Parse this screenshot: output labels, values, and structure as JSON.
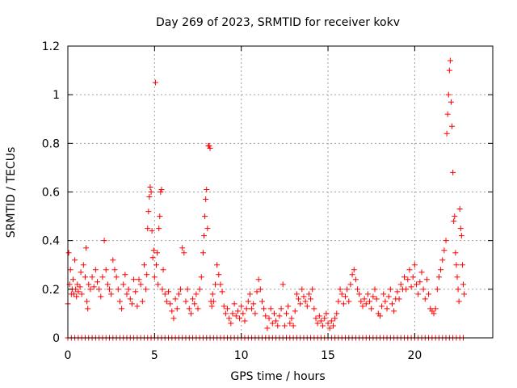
{
  "chart_data": {
    "type": "scatter",
    "title": "Day 269 of 2023, SRMTID for receiver kokv",
    "xlabel": "GPS time / hours",
    "ylabel": "SRMTID / TECUs",
    "xlim": [
      0,
      24.5
    ],
    "ylim": [
      0,
      1.2
    ],
    "x_ticks": [
      0,
      5,
      10,
      15,
      20
    ],
    "x_tick_labels": [
      "0",
      "5",
      "10",
      "15",
      "20"
    ],
    "y_ticks": [
      0,
      0.2,
      0.4,
      0.6,
      0.8,
      1.0,
      1.2
    ],
    "y_tick_labels": [
      "0",
      "0.2",
      "0.4",
      "0.6",
      "0.8",
      "1",
      "1.2"
    ],
    "grid": true,
    "legend": "none",
    "marker": "plus",
    "color": "#ff0000",
    "series": [
      {
        "name": "SRMTID",
        "points": [
          [
            0.0,
            0.14
          ],
          [
            0.05,
            0.35
          ],
          [
            0.1,
            0.22
          ],
          [
            0.15,
            0.28
          ],
          [
            0.2,
            0.18
          ],
          [
            0.25,
            0.2
          ],
          [
            0.3,
            0.24
          ],
          [
            0.35,
            0.18
          ],
          [
            0.4,
            0.32
          ],
          [
            0.45,
            0.2
          ],
          [
            0.5,
            0.17
          ],
          [
            0.55,
            0.22
          ],
          [
            0.6,
            0.19
          ],
          [
            0.7,
            0.21
          ],
          [
            0.75,
            0.27
          ],
          [
            0.8,
            0.18
          ],
          [
            0.9,
            0.3
          ],
          [
            1.0,
            0.25
          ],
          [
            1.05,
            0.37
          ],
          [
            1.1,
            0.15
          ],
          [
            1.15,
            0.12
          ],
          [
            1.2,
            0.22
          ],
          [
            1.3,
            0.2
          ],
          [
            1.4,
            0.25
          ],
          [
            1.5,
            0.21
          ],
          [
            1.6,
            0.28
          ],
          [
            1.7,
            0.23
          ],
          [
            1.8,
            0.2
          ],
          [
            1.9,
            0.17
          ],
          [
            2.0,
            0.25
          ],
          [
            2.1,
            0.4
          ],
          [
            2.2,
            0.28
          ],
          [
            2.3,
            0.22
          ],
          [
            2.4,
            0.2
          ],
          [
            2.5,
            0.18
          ],
          [
            2.6,
            0.32
          ],
          [
            2.7,
            0.28
          ],
          [
            2.8,
            0.25
          ],
          [
            2.9,
            0.2
          ],
          [
            3.0,
            0.15
          ],
          [
            3.1,
            0.12
          ],
          [
            3.2,
            0.22
          ],
          [
            3.3,
            0.26
          ],
          [
            3.4,
            0.18
          ],
          [
            3.5,
            0.2
          ],
          [
            3.6,
            0.16
          ],
          [
            3.7,
            0.14
          ],
          [
            3.8,
            0.24
          ],
          [
            3.9,
            0.19
          ],
          [
            4.0,
            0.13
          ],
          [
            4.1,
            0.24
          ],
          [
            4.2,
            0.22
          ],
          [
            4.3,
            0.15
          ],
          [
            4.4,
            0.3
          ],
          [
            4.5,
            0.2
          ],
          [
            4.55,
            0.26
          ],
          [
            4.6,
            0.45
          ],
          [
            4.65,
            0.52
          ],
          [
            4.7,
            0.58
          ],
          [
            4.75,
            0.62
          ],
          [
            4.8,
            0.6
          ],
          [
            4.85,
            0.44
          ],
          [
            4.9,
            0.33
          ],
          [
            4.95,
            0.36
          ],
          [
            5.0,
            0.25
          ],
          [
            5.05,
            1.05
          ],
          [
            5.1,
            0.3
          ],
          [
            5.15,
            0.35
          ],
          [
            5.2,
            0.22
          ],
          [
            5.25,
            0.45
          ],
          [
            5.3,
            0.5
          ],
          [
            5.35,
            0.6
          ],
          [
            5.4,
            0.61
          ],
          [
            5.45,
            0.2
          ],
          [
            5.5,
            0.28
          ],
          [
            5.6,
            0.18
          ],
          [
            5.7,
            0.15
          ],
          [
            5.8,
            0.19
          ],
          [
            5.9,
            0.14
          ],
          [
            6.0,
            0.11
          ],
          [
            6.1,
            0.08
          ],
          [
            6.2,
            0.16
          ],
          [
            6.3,
            0.12
          ],
          [
            6.4,
            0.18
          ],
          [
            6.5,
            0.2
          ],
          [
            6.6,
            0.37
          ],
          [
            6.7,
            0.35
          ],
          [
            6.8,
            0.15
          ],
          [
            6.9,
            0.2
          ],
          [
            7.0,
            0.12
          ],
          [
            7.1,
            0.1
          ],
          [
            7.2,
            0.16
          ],
          [
            7.3,
            0.14
          ],
          [
            7.4,
            0.18
          ],
          [
            7.5,
            0.12
          ],
          [
            7.6,
            0.2
          ],
          [
            7.7,
            0.25
          ],
          [
            7.8,
            0.35
          ],
          [
            7.85,
            0.42
          ],
          [
            7.9,
            0.5
          ],
          [
            7.95,
            0.57
          ],
          [
            8.0,
            0.61
          ],
          [
            8.05,
            0.45
          ],
          [
            8.1,
            0.79
          ],
          [
            8.15,
            0.79
          ],
          [
            8.2,
            0.78
          ],
          [
            8.25,
            0.15
          ],
          [
            8.3,
            0.13
          ],
          [
            8.35,
            0.18
          ],
          [
            8.4,
            0.15
          ],
          [
            8.5,
            0.22
          ],
          [
            8.6,
            0.3
          ],
          [
            8.7,
            0.26
          ],
          [
            8.8,
            0.22
          ],
          [
            8.9,
            0.19
          ],
          [
            9.0,
            0.13
          ],
          [
            9.1,
            0.1
          ],
          [
            9.2,
            0.12
          ],
          [
            9.3,
            0.08
          ],
          [
            9.4,
            0.06
          ],
          [
            9.5,
            0.1
          ],
          [
            9.6,
            0.14
          ],
          [
            9.7,
            0.09
          ],
          [
            9.8,
            0.11
          ],
          [
            9.9,
            0.08
          ],
          [
            10.0,
            0.13
          ],
          [
            10.1,
            0.1
          ],
          [
            10.2,
            0.07
          ],
          [
            10.3,
            0.12
          ],
          [
            10.4,
            0.15
          ],
          [
            10.5,
            0.18
          ],
          [
            10.6,
            0.12
          ],
          [
            10.7,
            0.14
          ],
          [
            10.8,
            0.1
          ],
          [
            10.9,
            0.19
          ],
          [
            11.0,
            0.24
          ],
          [
            11.1,
            0.2
          ],
          [
            11.2,
            0.15
          ],
          [
            11.3,
            0.12
          ],
          [
            11.4,
            0.09
          ],
          [
            11.5,
            0.04
          ],
          [
            11.6,
            0.08
          ],
          [
            11.7,
            0.12
          ],
          [
            11.8,
            0.06
          ],
          [
            11.9,
            0.1
          ],
          [
            12.0,
            0.07
          ],
          [
            12.1,
            0.05
          ],
          [
            12.2,
            0.09
          ],
          [
            12.3,
            0.12
          ],
          [
            12.4,
            0.22
          ],
          [
            12.5,
            0.05
          ],
          [
            12.6,
            0.1
          ],
          [
            12.7,
            0.13
          ],
          [
            12.8,
            0.06
          ],
          [
            12.9,
            0.08
          ],
          [
            13.0,
            0.05
          ],
          [
            13.1,
            0.11
          ],
          [
            13.2,
            0.18
          ],
          [
            13.3,
            0.16
          ],
          [
            13.4,
            0.14
          ],
          [
            13.5,
            0.2
          ],
          [
            13.6,
            0.17
          ],
          [
            13.7,
            0.15
          ],
          [
            13.8,
            0.13
          ],
          [
            13.9,
            0.18
          ],
          [
            14.0,
            0.16
          ],
          [
            14.1,
            0.2
          ],
          [
            14.2,
            0.12
          ],
          [
            14.3,
            0.08
          ],
          [
            14.4,
            0.06
          ],
          [
            14.5,
            0.09
          ],
          [
            14.6,
            0.07
          ],
          [
            14.7,
            0.05
          ],
          [
            14.8,
            0.08
          ],
          [
            14.9,
            0.1
          ],
          [
            15.0,
            0.06
          ],
          [
            15.1,
            0.04
          ],
          [
            15.2,
            0.07
          ],
          [
            15.3,
            0.05
          ],
          [
            15.4,
            0.08
          ],
          [
            15.5,
            0.1
          ],
          [
            15.6,
            0.15
          ],
          [
            15.7,
            0.2
          ],
          [
            15.8,
            0.18
          ],
          [
            15.9,
            0.14
          ],
          [
            16.0,
            0.17
          ],
          [
            16.1,
            0.2
          ],
          [
            16.2,
            0.15
          ],
          [
            16.3,
            0.22
          ],
          [
            16.4,
            0.26
          ],
          [
            16.5,
            0.28
          ],
          [
            16.6,
            0.24
          ],
          [
            16.7,
            0.2
          ],
          [
            16.8,
            0.18
          ],
          [
            16.9,
            0.15
          ],
          [
            17.0,
            0.13
          ],
          [
            17.1,
            0.16
          ],
          [
            17.2,
            0.14
          ],
          [
            17.3,
            0.18
          ],
          [
            17.4,
            0.15
          ],
          [
            17.5,
            0.12
          ],
          [
            17.6,
            0.17
          ],
          [
            17.7,
            0.2
          ],
          [
            17.8,
            0.16
          ],
          [
            17.9,
            0.1
          ],
          [
            18.0,
            0.09
          ],
          [
            18.1,
            0.13
          ],
          [
            18.2,
            0.18
          ],
          [
            18.3,
            0.15
          ],
          [
            18.4,
            0.12
          ],
          [
            18.5,
            0.17
          ],
          [
            18.6,
            0.2
          ],
          [
            18.7,
            0.14
          ],
          [
            18.8,
            0.11
          ],
          [
            18.9,
            0.16
          ],
          [
            19.0,
            0.19
          ],
          [
            19.1,
            0.16
          ],
          [
            19.2,
            0.22
          ],
          [
            19.3,
            0.2
          ],
          [
            19.4,
            0.25
          ],
          [
            19.5,
            0.2
          ],
          [
            19.6,
            0.24
          ],
          [
            19.7,
            0.28
          ],
          [
            19.8,
            0.21
          ],
          [
            19.9,
            0.25
          ],
          [
            20.0,
            0.3
          ],
          [
            20.1,
            0.22
          ],
          [
            20.2,
            0.18
          ],
          [
            20.3,
            0.23
          ],
          [
            20.4,
            0.27
          ],
          [
            20.5,
            0.2
          ],
          [
            20.6,
            0.16
          ],
          [
            20.7,
            0.24
          ],
          [
            20.8,
            0.18
          ],
          [
            20.9,
            0.12
          ],
          [
            21.0,
            0.11
          ],
          [
            21.1,
            0.1
          ],
          [
            21.2,
            0.12
          ],
          [
            21.3,
            0.2
          ],
          [
            21.4,
            0.25
          ],
          [
            21.5,
            0.28
          ],
          [
            21.6,
            0.32
          ],
          [
            21.7,
            0.36
          ],
          [
            21.8,
            0.4
          ],
          [
            21.85,
            0.84
          ],
          [
            21.9,
            0.92
          ],
          [
            21.95,
            1.0
          ],
          [
            22.0,
            1.1
          ],
          [
            22.05,
            1.14
          ],
          [
            22.1,
            0.97
          ],
          [
            22.15,
            0.87
          ],
          [
            22.2,
            0.68
          ],
          [
            22.25,
            0.48
          ],
          [
            22.3,
            0.5
          ],
          [
            22.35,
            0.35
          ],
          [
            22.4,
            0.3
          ],
          [
            22.45,
            0.25
          ],
          [
            22.5,
            0.2
          ],
          [
            22.55,
            0.15
          ],
          [
            22.6,
            0.53
          ],
          [
            22.65,
            0.45
          ],
          [
            22.7,
            0.42
          ],
          [
            22.75,
            0.3
          ],
          [
            22.8,
            0.22
          ],
          [
            22.85,
            0.18
          ]
        ],
        "zero_points": [
          0.0,
          0.2,
          0.4,
          0.6,
          0.8,
          1.0,
          1.2,
          1.4,
          1.6,
          1.8,
          2.0,
          2.2,
          2.4,
          2.6,
          2.8,
          3.0,
          3.2,
          3.4,
          3.6,
          3.8,
          4.0,
          4.2,
          4.4,
          4.6,
          4.8,
          5.0,
          5.2,
          5.4,
          5.6,
          5.8,
          6.0,
          6.2,
          6.4,
          6.6,
          6.8,
          7.0,
          7.2,
          7.4,
          7.6,
          7.8,
          8.0,
          8.2,
          8.4,
          8.6,
          8.8,
          9.0,
          9.2,
          9.4,
          9.6,
          9.8,
          10.0,
          10.2,
          10.4,
          10.6,
          10.8,
          11.0,
          11.2,
          11.4,
          11.6,
          11.8,
          12.0,
          12.2,
          12.4,
          12.6,
          12.8,
          13.0,
          13.2,
          13.4,
          13.6,
          13.8,
          14.0,
          14.2,
          14.4,
          14.6,
          14.8,
          15.0,
          15.2,
          15.4,
          15.6,
          15.8,
          16.0,
          16.2,
          16.4,
          16.6,
          16.8,
          17.0,
          17.2,
          17.4,
          17.6,
          17.8,
          18.0,
          18.2,
          18.4,
          18.6,
          18.8,
          19.0,
          19.2,
          19.4,
          19.6,
          19.8,
          20.0,
          20.2,
          20.4,
          20.6,
          20.8,
          21.0,
          21.2,
          21.4,
          21.6,
          21.8,
          22.0,
          22.2,
          22.4,
          22.6,
          22.8
        ]
      }
    ]
  }
}
